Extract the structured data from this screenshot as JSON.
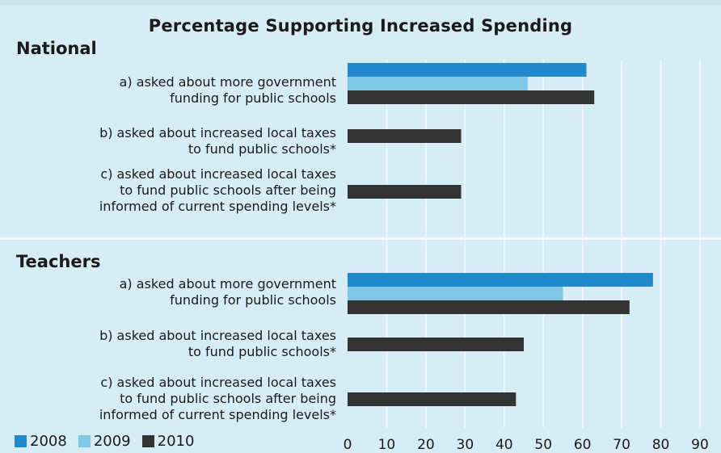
{
  "chart_data": {
    "type": "bar",
    "orientation": "horizontal",
    "title": "Percentage Supporting Increased Spending",
    "xlim": [
      0,
      90
    ],
    "xticks": [
      0,
      10,
      20,
      30,
      40,
      50,
      60,
      70,
      80,
      90
    ],
    "grid": true,
    "legend_position": "bottom-left",
    "series": [
      {
        "name": "2008",
        "color": "#2288cc"
      },
      {
        "name": "2009",
        "color": "#7ec7e6"
      },
      {
        "name": "2010",
        "color": "#333333"
      }
    ],
    "groups": [
      {
        "name": "National",
        "categories": [
          {
            "label_lines": [
              "a) asked about more government",
              "funding for public schools"
            ],
            "values": [
              61,
              46,
              63
            ]
          },
          {
            "label_lines": [
              "b) asked about increased local taxes",
              "to fund public schools*"
            ],
            "values": [
              null,
              null,
              29
            ]
          },
          {
            "label_lines": [
              "c) asked about increased local taxes",
              "to fund public schools after being",
              "informed of current spending levels*"
            ],
            "values": [
              null,
              null,
              29
            ]
          }
        ]
      },
      {
        "name": "Teachers",
        "categories": [
          {
            "label_lines": [
              "a) asked about more government",
              "funding for public schools"
            ],
            "values": [
              78,
              55,
              72
            ]
          },
          {
            "label_lines": [
              "b) asked about increased local taxes",
              "to fund public schools*"
            ],
            "values": [
              null,
              null,
              45
            ]
          },
          {
            "label_lines": [
              "c) asked about increased local taxes",
              "to fund public schools after being",
              "informed of current spending levels*"
            ],
            "values": [
              null,
              null,
              43
            ]
          }
        ]
      }
    ]
  }
}
